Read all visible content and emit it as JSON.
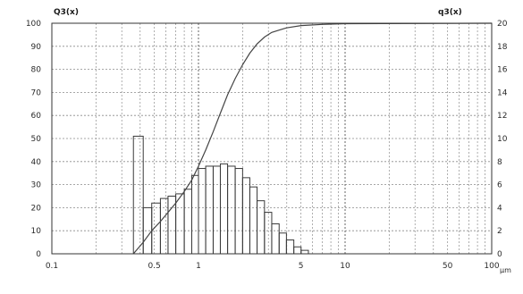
{
  "chart_data": {
    "type": "bar",
    "x_scale": "log",
    "xlim": [
      0.1,
      100
    ],
    "y_left_lim": [
      0,
      100
    ],
    "y_right_lim": [
      0,
      20
    ],
    "grid": true,
    "header_left": "Q3(x)",
    "header_right": "q3(x)",
    "x_unit": "µm",
    "x_ticks": [
      {
        "value": 0.1,
        "label": "0.1"
      },
      {
        "value": 0.5,
        "label": "0.5"
      },
      {
        "value": 1,
        "label": "1"
      },
      {
        "value": 5,
        "label": "5"
      },
      {
        "value": 10,
        "label": "10"
      },
      {
        "value": 50,
        "label": "50"
      },
      {
        "value": 100,
        "label": "100"
      }
    ],
    "y_left_ticks": [
      0,
      10,
      20,
      30,
      40,
      50,
      60,
      70,
      80,
      90,
      100
    ],
    "y_right_ticks": [
      0,
      2,
      4,
      6,
      8,
      10,
      12,
      14,
      16,
      18,
      20
    ],
    "series": [
      {
        "type": "bar",
        "axis": "right",
        "bins": [
          [
            0.36,
            0.42,
            10.2
          ],
          [
            0.42,
            0.48,
            4.0
          ],
          [
            0.48,
            0.55,
            4.4
          ],
          [
            0.55,
            0.62,
            4.8
          ],
          [
            0.62,
            0.7,
            5.0
          ],
          [
            0.7,
            0.8,
            5.2
          ],
          [
            0.8,
            0.9,
            5.6
          ],
          [
            0.9,
            1.0,
            6.8
          ],
          [
            1.0,
            1.12,
            7.4
          ],
          [
            1.12,
            1.26,
            7.6
          ],
          [
            1.26,
            1.41,
            7.6
          ],
          [
            1.41,
            1.58,
            7.8
          ],
          [
            1.58,
            1.78,
            7.6
          ],
          [
            1.78,
            2.0,
            7.4
          ],
          [
            2.0,
            2.24,
            6.6
          ],
          [
            2.24,
            2.51,
            5.8
          ],
          [
            2.51,
            2.82,
            4.6
          ],
          [
            2.82,
            3.16,
            3.6
          ],
          [
            3.16,
            3.55,
            2.6
          ],
          [
            3.55,
            3.98,
            1.8
          ],
          [
            3.98,
            4.47,
            1.2
          ],
          [
            4.47,
            5.01,
            0.6
          ],
          [
            5.01,
            5.62,
            0.3
          ]
        ]
      },
      {
        "type": "line",
        "axis": "left",
        "points": [
          [
            0.36,
            0
          ],
          [
            0.42,
            5
          ],
          [
            0.48,
            10
          ],
          [
            0.55,
            14
          ],
          [
            0.62,
            18
          ],
          [
            0.7,
            22
          ],
          [
            0.8,
            27
          ],
          [
            0.9,
            32
          ],
          [
            1.0,
            38
          ],
          [
            1.12,
            45
          ],
          [
            1.26,
            53
          ],
          [
            1.41,
            61
          ],
          [
            1.58,
            69
          ],
          [
            1.78,
            76
          ],
          [
            2.0,
            82
          ],
          [
            2.24,
            87
          ],
          [
            2.51,
            91
          ],
          [
            2.82,
            94
          ],
          [
            3.16,
            96
          ],
          [
            3.55,
            97
          ],
          [
            3.98,
            98
          ],
          [
            5.01,
            99
          ],
          [
            7,
            99.5
          ],
          [
            10,
            99.8
          ],
          [
            100,
            100
          ]
        ]
      }
    ]
  }
}
